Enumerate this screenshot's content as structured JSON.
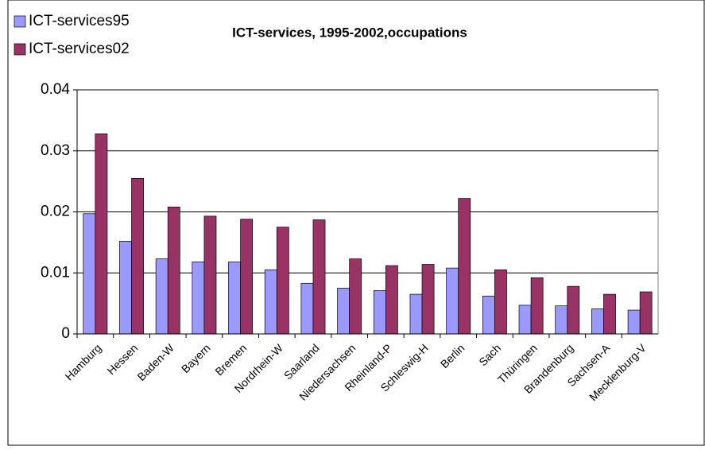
{
  "chart_data": {
    "type": "bar",
    "title": "ICT-services, 1995-2002,occupations",
    "categories": [
      "Hamburg",
      "Hessen",
      "Baden-W",
      "Bayern",
      "Bremen",
      "Nordrhein-W",
      "Saarland",
      "Niedersachsen",
      "Rheinland-P",
      "Schleswig-H",
      "Berlin",
      "Sach",
      "Thüringen",
      "Brandenburg",
      "Sachsen-A",
      "Mecklenburg-V"
    ],
    "series": [
      {
        "name": "ICT-services95",
        "color": "#9999ff",
        "values": [
          0.0197,
          0.0152,
          0.0123,
          0.0118,
          0.0118,
          0.0105,
          0.0083,
          0.0075,
          0.0071,
          0.0065,
          0.0108,
          0.0062,
          0.0047,
          0.0046,
          0.0041,
          0.0039
        ]
      },
      {
        "name": "ICT-services02",
        "color": "#993366",
        "values": [
          0.0328,
          0.0255,
          0.0208,
          0.0193,
          0.0188,
          0.0175,
          0.0187,
          0.0123,
          0.0112,
          0.0114,
          0.0222,
          0.0105,
          0.0092,
          0.0078,
          0.0065,
          0.0069
        ]
      }
    ],
    "ylim": [
      0,
      0.04
    ],
    "yticks": [
      0,
      0.01,
      0.02,
      0.03,
      0.04
    ],
    "grid": true,
    "legend": "top-left"
  }
}
